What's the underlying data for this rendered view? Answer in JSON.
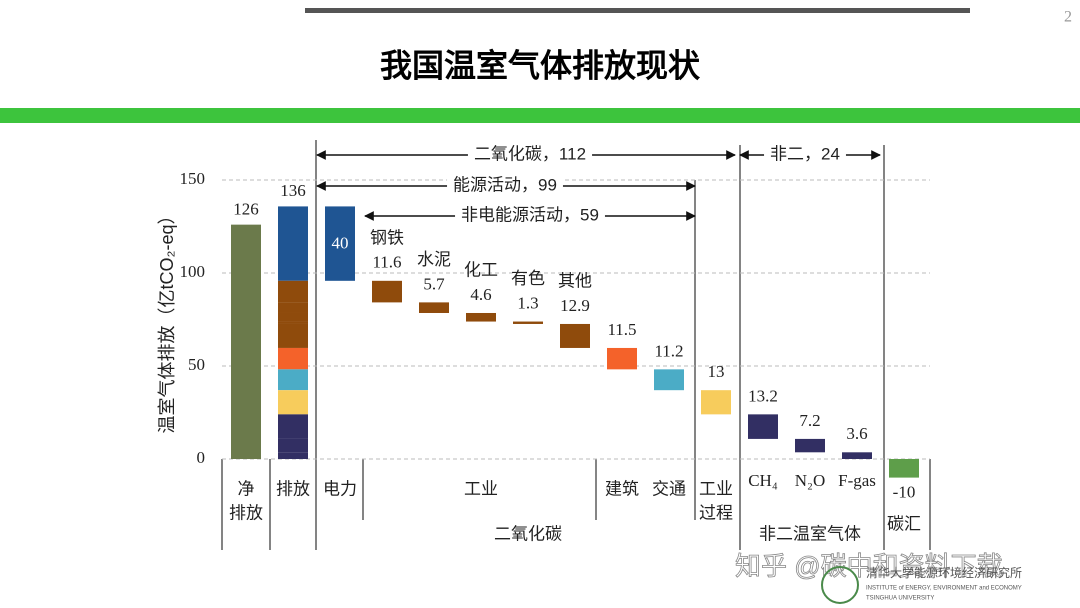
{
  "page": {
    "number": "2",
    "title": "我国温室气体排放现状",
    "watermark": "知乎 @碳中和资料下载",
    "logo": {
      "name": "清华大学能源环境经济研究所",
      "english": "INSTITUTE of ENERGY, ENVIRONMENT and ECONOMY",
      "university": "TSINGHUA UNIVERSITY"
    }
  },
  "chart_data": {
    "type": "waterfall",
    "y_label": "温室气体排放（亿tCO₂-eq）",
    "ylim": [
      -10,
      150
    ],
    "yticks": [
      0,
      50,
      100,
      150
    ],
    "grid": true,
    "net": {
      "name": [
        "净",
        "排放"
      ],
      "value": 126,
      "color": "#6b7a4b"
    },
    "total": {
      "name": "排放",
      "value": 136
    },
    "sections": [
      {
        "name": "二氧化碳",
        "columns": [
          {
            "name": "电力",
            "bars": [
              {
                "value": 40,
                "color": "#1f5593"
              }
            ]
          },
          {
            "name": "工业",
            "bars": [
              {
                "name": "钢铁",
                "value": 11.6,
                "color": "#8f4b0c"
              },
              {
                "name": "水泥",
                "value": 5.7,
                "color": "#8f4b0c"
              },
              {
                "name": "化工",
                "value": 4.6,
                "color": "#8f4b0c"
              },
              {
                "name": "有色",
                "value": 1.3,
                "color": "#8f4b0c"
              },
              {
                "name": "其他",
                "value": 12.9,
                "color": "#8f4b0c"
              }
            ]
          },
          {
            "name": "建筑",
            "bars": [
              {
                "value": 11.5,
                "color": "#f4622a"
              }
            ]
          },
          {
            "name": "交通",
            "bars": [
              {
                "value": 11.2,
                "color": "#4bacc6"
              }
            ]
          },
          {
            "name": [
              "工业",
              "过程"
            ],
            "bars": [
              {
                "value": 13,
                "color": "#f7cc5c"
              }
            ]
          }
        ]
      },
      {
        "name": "非二温室气体",
        "columns": [
          {
            "name": "CH₄",
            "bars": [
              {
                "value": 13.2,
                "color": "#322f63"
              }
            ]
          },
          {
            "name": "N₂O",
            "bars": [
              {
                "value": 7.2,
                "color": "#322f63"
              }
            ]
          },
          {
            "name": "F-gas",
            "bars": [
              {
                "value": 3.6,
                "color": "#322f63"
              }
            ]
          }
        ]
      },
      {
        "name": "碳汇",
        "columns": [
          {
            "bars": [
              {
                "value": -10,
                "color": "#5e9e4a"
              }
            ]
          }
        ]
      }
    ],
    "spans": [
      "二氧化碳，112",
      "能源活动，99",
      "非电能源活动，59",
      "非二，24"
    ]
  }
}
